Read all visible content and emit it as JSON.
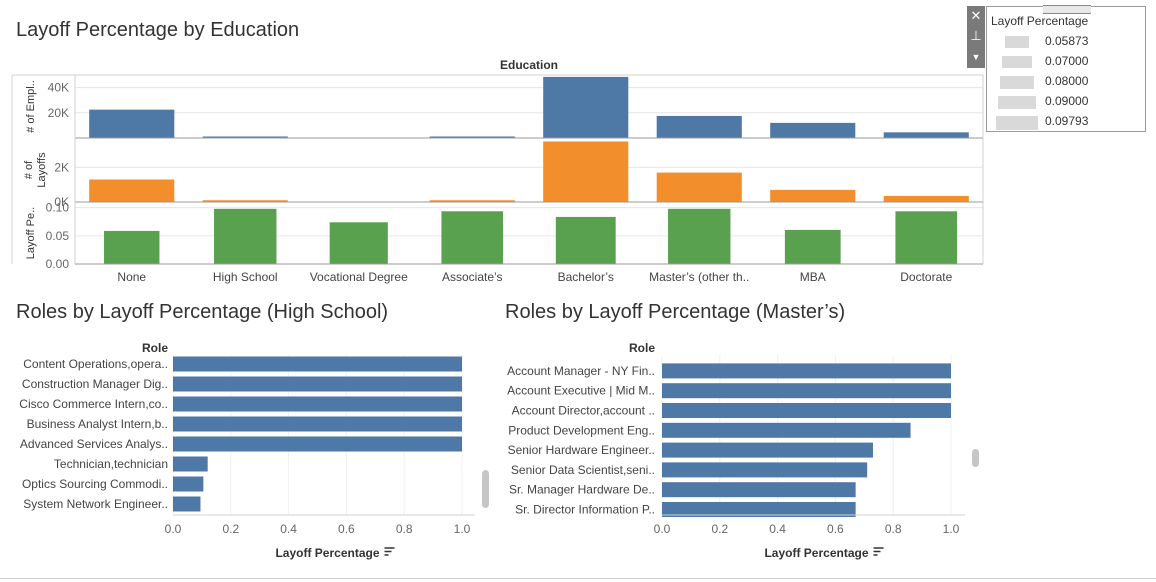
{
  "titles": {
    "main": "Layoff Percentage by Education",
    "high_school": "Roles by Layoff Percentage (High School)",
    "masters": "Roles by Layoff Percentage (Master’s)"
  },
  "legend": {
    "title": "Layoff Percentage",
    "items": [
      "0.05873",
      "0.07000",
      "0.08000",
      "0.09000",
      "0.09793"
    ],
    "tools": [
      "close-icon",
      "pin-icon",
      "dropdown-icon"
    ]
  },
  "colors": {
    "employees": "#4e79a7",
    "layoffs": "#f28e2b",
    "percentage": "#59a14f",
    "role_bars": "#4e79a7",
    "gridline": "#e6e6e6",
    "axis_text": "#666666"
  },
  "chart_data": [
    {
      "type": "bar",
      "title": "Layoff Percentage by Education",
      "column_header": "Education",
      "categories": [
        "None",
        "High School",
        "Vocational Degree",
        "Associate’s",
        "Bachelor’s",
        "Master’s (other th..",
        "MBA",
        "Doctorate"
      ],
      "panes": [
        {
          "ylabel": "# of Empl..",
          "color": "#4e79a7",
          "ylim": [
            0,
            50000
          ],
          "ticks": [
            20000,
            40000
          ],
          "tick_labels": [
            "20K",
            "40K"
          ],
          "values": [
            22500,
            1200,
            0,
            1200,
            48500,
            17500,
            12000,
            4500
          ]
        },
        {
          "ylabel": "# of Layoffs",
          "color": "#f28e2b",
          "ylim": [
            0,
            3700
          ],
          "ticks": [
            0,
            2000
          ],
          "tick_labels": [
            "0K",
            "2K"
          ],
          "values": [
            1300,
            100,
            0,
            100,
            3500,
            1700,
            700,
            350
          ]
        },
        {
          "ylabel": "Layoff Pe..",
          "color": "#59a14f",
          "ylim": [
            0,
            0.11
          ],
          "ticks": [
            0.0,
            0.05,
            0.1
          ],
          "tick_labels": [
            "0.00",
            "0.05",
            "0.10"
          ],
          "values": [
            0.0587,
            0.0979,
            0.074,
            0.0935,
            0.0835,
            0.0979,
            0.0605,
            0.0935
          ]
        }
      ]
    },
    {
      "type": "bar",
      "orientation": "horizontal",
      "title": "Roles by Layoff Percentage (High School)",
      "row_header": "Role",
      "xlabel": "Layoff Percentage",
      "xlim": [
        0,
        1.0
      ],
      "ticks": [
        "0.0",
        "0.2",
        "0.4",
        "0.6",
        "0.8",
        "1.0"
      ],
      "categories": [
        "Content Operations,opera..",
        "Construction Manager Dig..",
        "Cisco Commerce Intern,co..",
        "Business Analyst Intern,b..",
        "Advanced Services Analys..",
        "Technician,technician",
        "Optics Sourcing Commodi..",
        "System Network Engineer.."
      ],
      "values": [
        1.0,
        1.0,
        1.0,
        1.0,
        1.0,
        0.12,
        0.105,
        0.095
      ]
    },
    {
      "type": "bar",
      "orientation": "horizontal",
      "title": "Roles by Layoff Percentage (Master’s)",
      "row_header": "Role",
      "xlabel": "Layoff Percentage",
      "xlim": [
        0,
        1.0
      ],
      "ticks": [
        "0.0",
        "0.2",
        "0.4",
        "0.6",
        "0.8",
        "1.0"
      ],
      "categories": [
        "Account Manager - NY Fin..",
        "Account Executive | Mid M..",
        "Account Director,account ..",
        "Product Development Eng..",
        "Senior Hardware Engineer..",
        "Senior Data Scientist,seni..",
        "Sr. Manager Hardware De..",
        "Sr. Director Information P.."
      ],
      "values": [
        1.0,
        1.0,
        1.0,
        0.86,
        0.73,
        0.71,
        0.67,
        0.67
      ]
    }
  ]
}
